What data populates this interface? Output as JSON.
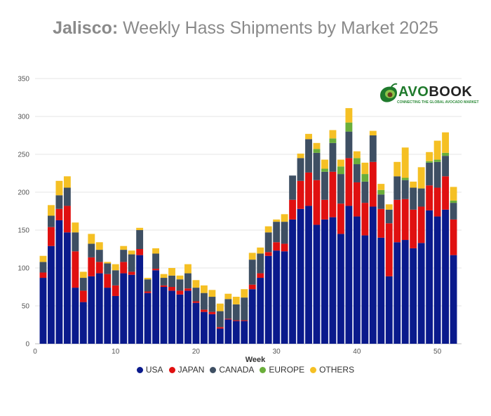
{
  "title_prefix": "Jalisco:",
  "title_rest": " Weekly Hass Shipments by Market 2025",
  "logo": {
    "text_avo": "AVO",
    "text_book": "BOOK",
    "tagline": "CONNECTING THE GLOBAL AVOCADO MARKET",
    "icon": "avocado-icon"
  },
  "chart_data": {
    "type": "bar",
    "stacked": true,
    "title": "Jalisco: Weekly Hass Shipments by Market 2025",
    "xlabel": "Week",
    "ylabel": "",
    "x": [
      1,
      2,
      3,
      4,
      5,
      6,
      7,
      8,
      9,
      10,
      11,
      12,
      13,
      14,
      15,
      16,
      17,
      18,
      19,
      20,
      21,
      22,
      23,
      24,
      25,
      26,
      27,
      28,
      29,
      30,
      31,
      32,
      33,
      34,
      35,
      36,
      37,
      38,
      39,
      40,
      41,
      42,
      43,
      44,
      45,
      46,
      47,
      48,
      49,
      50,
      51,
      52
    ],
    "xlim": [
      0,
      53
    ],
    "xticks": [
      0,
      10,
      20,
      30,
      40,
      50
    ],
    "ylim": [
      0,
      350
    ],
    "yticks": [
      0,
      50,
      100,
      150,
      200,
      250,
      300,
      350
    ],
    "grid": true,
    "legend_position": "bottom",
    "series": [
      {
        "name": "USA",
        "color": "#0a1a8c",
        "values": [
          87,
          129,
          163,
          147,
          74,
          55,
          89,
          93,
          74,
          63,
          93,
          91,
          117,
          67,
          97,
          75,
          70,
          65,
          70,
          54,
          42,
          39,
          20,
          32,
          30,
          30,
          72,
          87,
          116,
          123,
          122,
          164,
          178,
          182,
          157,
          164,
          167,
          145,
          182,
          168,
          143,
          181,
          140,
          89,
          134,
          137,
          126,
          133,
          176,
          168,
          177,
          117
        ]
      },
      {
        "name": "JAPAN",
        "color": "#e01010",
        "values": [
          7,
          25,
          15,
          35,
          48,
          15,
          25,
          15,
          18,
          14,
          15,
          4,
          8,
          2,
          2,
          2,
          5,
          5,
          3,
          2,
          3,
          3,
          2,
          1,
          1,
          1,
          6,
          6,
          5,
          11,
          10,
          26,
          37,
          44,
          59,
          26,
          60,
          40,
          63,
          45,
          43,
          59,
          38,
          70,
          56,
          54,
          51,
          48,
          33,
          38,
          44,
          47
        ]
      },
      {
        "name": "CANADA",
        "color": "#3e4f63",
        "values": [
          14,
          15,
          18,
          24,
          25,
          17,
          18,
          16,
          14,
          20,
          16,
          23,
          25,
          16,
          20,
          10,
          15,
          15,
          20,
          18,
          22,
          20,
          21,
          26,
          21,
          30,
          33,
          26,
          26,
          27,
          29,
          32,
          30,
          44,
          36,
          37,
          38,
          39,
          35,
          24,
          28,
          35,
          19,
          18,
          31,
          25,
          29,
          24,
          30,
          34,
          27,
          22
        ]
      },
      {
        "name": "EUROPE",
        "color": "#6aae3a",
        "values": [
          0,
          0,
          0,
          0,
          0,
          0,
          0,
          0,
          0,
          0,
          0,
          0,
          0,
          0,
          0,
          0,
          0,
          0,
          0,
          0,
          0,
          0,
          0,
          0,
          0,
          0,
          0,
          0,
          0,
          0,
          0,
          0,
          0,
          0,
          5,
          4,
          6,
          10,
          12,
          8,
          10,
          0,
          6,
          0,
          0,
          3,
          0,
          0,
          2,
          3,
          4,
          3
        ]
      },
      {
        "name": "OTHERS",
        "color": "#f5c024",
        "values": [
          8,
          14,
          19,
          15,
          13,
          8,
          13,
          10,
          2,
          8,
          5,
          5,
          3,
          2,
          7,
          5,
          10,
          5,
          12,
          10,
          10,
          9,
          10,
          7,
          10,
          11,
          9,
          8,
          8,
          3,
          10,
          0,
          6,
          7,
          8,
          12,
          11,
          9,
          19,
          9,
          15,
          6,
          8,
          7,
          19,
          40,
          8,
          28,
          12,
          25,
          27,
          18
        ]
      }
    ]
  }
}
